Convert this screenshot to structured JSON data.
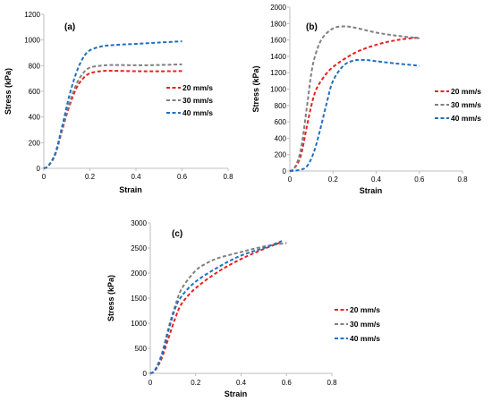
{
  "chart_data": [
    {
      "type": "line",
      "panel_label": "(a)",
      "xlabel": "Strain",
      "ylabel": "Stress (kPa)",
      "xlim": [
        0,
        0.8
      ],
      "ylim": [
        0,
        1200
      ],
      "xticks": [
        "0",
        "0.2",
        "0.4",
        "0.6",
        "0.8"
      ],
      "yticks": [
        "0",
        "200",
        "400",
        "600",
        "800",
        "1000",
        "1200"
      ],
      "legend_position": "right",
      "series": [
        {
          "name": "20 mm/s",
          "color": "#e8211e",
          "points": [
            [
              0,
              0
            ],
            [
              0.02,
              20
            ],
            [
              0.05,
              110
            ],
            [
              0.08,
              300
            ],
            [
              0.11,
              480
            ],
            [
              0.14,
              620
            ],
            [
              0.17,
              700
            ],
            [
              0.2,
              740
            ],
            [
              0.25,
              758
            ],
            [
              0.3,
              760
            ],
            [
              0.4,
              757
            ],
            [
              0.5,
              756
            ],
            [
              0.6,
              758
            ]
          ]
        },
        {
          "name": "30 mm/s",
          "color": "#808080",
          "points": [
            [
              0,
              0
            ],
            [
              0.02,
              20
            ],
            [
              0.05,
              110
            ],
            [
              0.08,
              310
            ],
            [
              0.11,
              500
            ],
            [
              0.14,
              650
            ],
            [
              0.17,
              740
            ],
            [
              0.2,
              785
            ],
            [
              0.25,
              800
            ],
            [
              0.3,
              805
            ],
            [
              0.4,
              803
            ],
            [
              0.5,
              805
            ],
            [
              0.6,
              810
            ]
          ]
        },
        {
          "name": "40 mm/s",
          "color": "#1f6fbf",
          "points": [
            [
              0,
              0
            ],
            [
              0.02,
              20
            ],
            [
              0.05,
              120
            ],
            [
              0.08,
              330
            ],
            [
              0.11,
              560
            ],
            [
              0.14,
              740
            ],
            [
              0.17,
              860
            ],
            [
              0.2,
              920
            ],
            [
              0.25,
              950
            ],
            [
              0.3,
              960
            ],
            [
              0.4,
              970
            ],
            [
              0.5,
              980
            ],
            [
              0.6,
              990
            ]
          ]
        }
      ]
    },
    {
      "type": "line",
      "panel_label": "(b)",
      "xlabel": "Strain",
      "ylabel": "Stress (kPa)",
      "xlim": [
        0,
        0.8
      ],
      "ylim": [
        0,
        2000
      ],
      "xticks": [
        "0",
        "0.2",
        "0.4",
        "0.6",
        "0.8"
      ],
      "yticks": [
        "0",
        "200",
        "400",
        "600",
        "800",
        "1000",
        "1200",
        "1400",
        "1600",
        "1800",
        "2000"
      ],
      "legend_position": "right",
      "series": [
        {
          "name": "20 mm/s",
          "color": "#e8211e",
          "points": [
            [
              0,
              0
            ],
            [
              0.02,
              30
            ],
            [
              0.05,
              180
            ],
            [
              0.08,
              560
            ],
            [
              0.1,
              800
            ],
            [
              0.12,
              980
            ],
            [
              0.15,
              1120
            ],
            [
              0.2,
              1270
            ],
            [
              0.3,
              1440
            ],
            [
              0.4,
              1540
            ],
            [
              0.5,
              1600
            ],
            [
              0.6,
              1630
            ]
          ]
        },
        {
          "name": "30 mm/s",
          "color": "#808080",
          "points": [
            [
              0,
              0
            ],
            [
              0.02,
              30
            ],
            [
              0.05,
              250
            ],
            [
              0.08,
              800
            ],
            [
              0.1,
              1200
            ],
            [
              0.12,
              1430
            ],
            [
              0.15,
              1620
            ],
            [
              0.2,
              1740
            ],
            [
              0.25,
              1765
            ],
            [
              0.3,
              1750
            ],
            [
              0.4,
              1690
            ],
            [
              0.5,
              1650
            ],
            [
              0.6,
              1620
            ]
          ]
        },
        {
          "name": "40 mm/s",
          "color": "#1f6fbf",
          "points": [
            [
              0,
              0
            ],
            [
              0.05,
              15
            ],
            [
              0.08,
              60
            ],
            [
              0.11,
              220
            ],
            [
              0.14,
              500
            ],
            [
              0.17,
              820
            ],
            [
              0.2,
              1100
            ],
            [
              0.25,
              1290
            ],
            [
              0.3,
              1350
            ],
            [
              0.35,
              1355
            ],
            [
              0.4,
              1340
            ],
            [
              0.5,
              1310
            ],
            [
              0.6,
              1285
            ]
          ]
        }
      ]
    },
    {
      "type": "line",
      "panel_label": "(c)",
      "xlabel": "Strain",
      "ylabel": "Stress (kPa)",
      "xlim": [
        0,
        0.8
      ],
      "ylim": [
        0,
        3000
      ],
      "xticks": [
        "0",
        "0.2",
        "0.4",
        "0.6",
        "0.8"
      ],
      "yticks": [
        "0",
        "500",
        "1000",
        "1500",
        "2000",
        "2500",
        "3000"
      ],
      "legend_position": "right",
      "series": [
        {
          "name": "20 mm/s",
          "color": "#e8211e",
          "points": [
            [
              0,
              0
            ],
            [
              0.02,
              50
            ],
            [
              0.05,
              300
            ],
            [
              0.08,
              700
            ],
            [
              0.11,
              1100
            ],
            [
              0.14,
              1400
            ],
            [
              0.2,
              1700
            ],
            [
              0.3,
              2030
            ],
            [
              0.4,
              2280
            ],
            [
              0.5,
              2480
            ],
            [
              0.58,
              2620
            ]
          ]
        },
        {
          "name": "30 mm/s",
          "color": "#808080",
          "points": [
            [
              0,
              0
            ],
            [
              0.02,
              60
            ],
            [
              0.05,
              380
            ],
            [
              0.08,
              900
            ],
            [
              0.11,
              1350
            ],
            [
              0.14,
              1700
            ],
            [
              0.2,
              2050
            ],
            [
              0.25,
              2200
            ],
            [
              0.3,
              2300
            ],
            [
              0.4,
              2420
            ],
            [
              0.5,
              2530
            ],
            [
              0.6,
              2600
            ]
          ]
        },
        {
          "name": "40 mm/s",
          "color": "#1f6fbf",
          "points": [
            [
              0,
              0
            ],
            [
              0.02,
              60
            ],
            [
              0.05,
              350
            ],
            [
              0.08,
              850
            ],
            [
              0.11,
              1300
            ],
            [
              0.14,
              1550
            ],
            [
              0.2,
              1830
            ],
            [
              0.3,
              2120
            ],
            [
              0.4,
              2350
            ],
            [
              0.5,
              2500
            ],
            [
              0.58,
              2640
            ]
          ]
        }
      ]
    }
  ]
}
